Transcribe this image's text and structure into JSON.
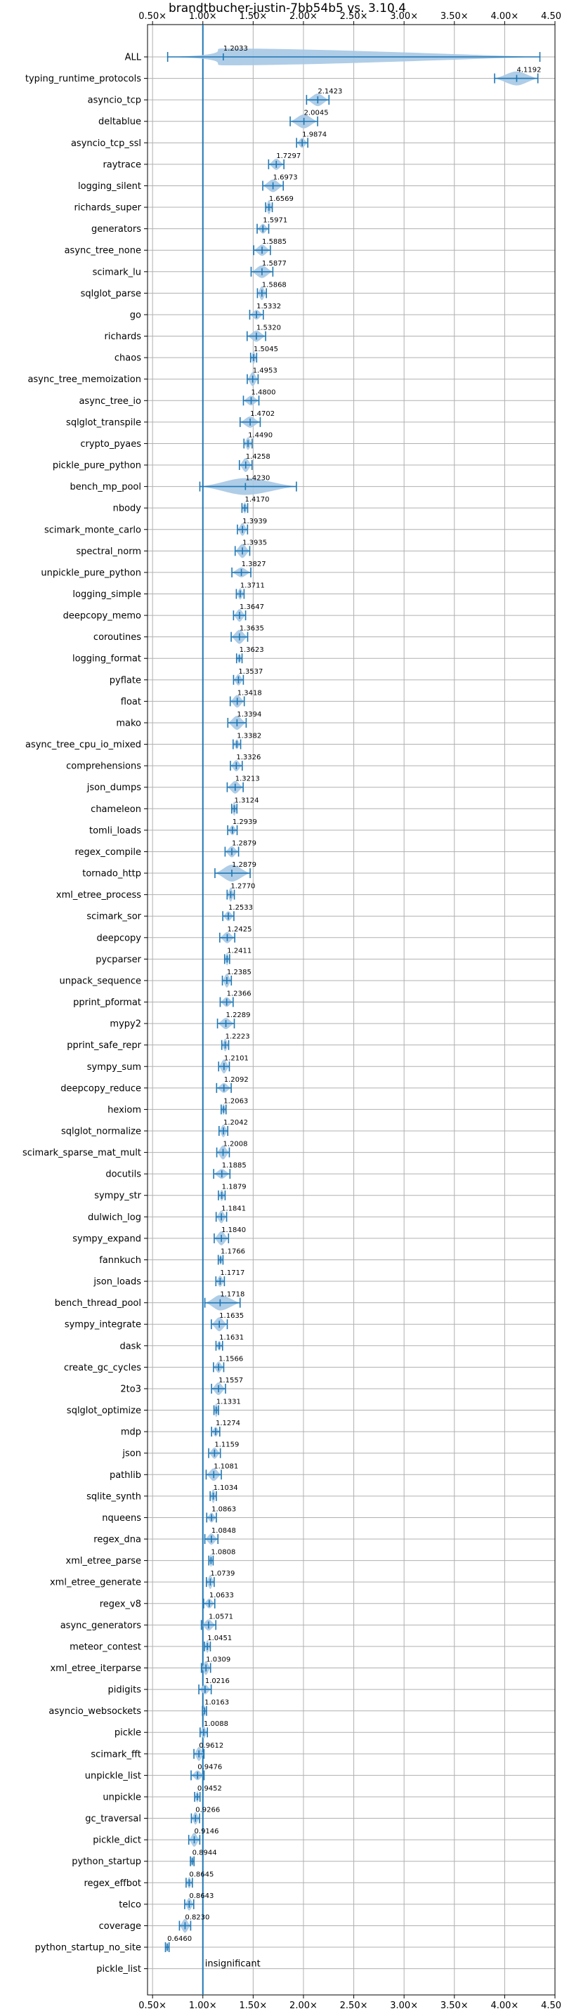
{
  "chart_data": {
    "type": "violin",
    "title": "brandtbucher-justin-7bb54b5 vs. 3.10.4",
    "xlabel": "",
    "ylabel": "",
    "xlim": [
      0.45,
      4.5
    ],
    "xticks": [
      0.5,
      1.0,
      1.5,
      2.0,
      2.5,
      3.0,
      3.5,
      4.0,
      4.5
    ],
    "xtick_labels": [
      "0.50×",
      "1.00×",
      "1.50×",
      "2.00×",
      "2.50×",
      "3.00×",
      "3.50×",
      "4.00×",
      "4.50×"
    ],
    "reference_line": 1.0,
    "grid": true,
    "colors": {
      "violin": "#a6c8e4",
      "line": "#1f77b4",
      "grid": "#b0b0b0"
    },
    "benchmarks": [
      {
        "name": "ALL",
        "value": 1.2033,
        "label": "1.2033"
      },
      {
        "name": "typing_runtime_protocols",
        "value": 4.1192,
        "label": "4.1192"
      },
      {
        "name": "asyncio_tcp",
        "value": 2.1423,
        "label": "2.1423"
      },
      {
        "name": "deltablue",
        "value": 2.0045,
        "label": "2.0045"
      },
      {
        "name": "asyncio_tcp_ssl",
        "value": 1.9874,
        "label": "1.9874"
      },
      {
        "name": "raytrace",
        "value": 1.7297,
        "label": "1.7297"
      },
      {
        "name": "logging_silent",
        "value": 1.6973,
        "label": "1.6973"
      },
      {
        "name": "richards_super",
        "value": 1.6569,
        "label": "1.6569"
      },
      {
        "name": "generators",
        "value": 1.5971,
        "label": "1.5971"
      },
      {
        "name": "async_tree_none",
        "value": 1.5885,
        "label": "1.5885"
      },
      {
        "name": "scimark_lu",
        "value": 1.5877,
        "label": "1.5877"
      },
      {
        "name": "sqlglot_parse",
        "value": 1.5868,
        "label": "1.5868"
      },
      {
        "name": "go",
        "value": 1.5332,
        "label": "1.5332"
      },
      {
        "name": "richards",
        "value": 1.532,
        "label": "1.5320"
      },
      {
        "name": "chaos",
        "value": 1.5045,
        "label": "1.5045"
      },
      {
        "name": "async_tree_memoization",
        "value": 1.4953,
        "label": "1.4953"
      },
      {
        "name": "async_tree_io",
        "value": 1.48,
        "label": "1.4800"
      },
      {
        "name": "sqlglot_transpile",
        "value": 1.4702,
        "label": "1.4702"
      },
      {
        "name": "crypto_pyaes",
        "value": 1.449,
        "label": "1.4490"
      },
      {
        "name": "pickle_pure_python",
        "value": 1.4258,
        "label": "1.4258"
      },
      {
        "name": "bench_mp_pool",
        "value": 1.423,
        "label": "1.4230"
      },
      {
        "name": "nbody",
        "value": 1.417,
        "label": "1.4170"
      },
      {
        "name": "scimark_monte_carlo",
        "value": 1.3939,
        "label": "1.3939"
      },
      {
        "name": "spectral_norm",
        "value": 1.3935,
        "label": "1.3935"
      },
      {
        "name": "unpickle_pure_python",
        "value": 1.3827,
        "label": "1.3827"
      },
      {
        "name": "logging_simple",
        "value": 1.3711,
        "label": "1.3711"
      },
      {
        "name": "deepcopy_memo",
        "value": 1.3647,
        "label": "1.3647"
      },
      {
        "name": "coroutines",
        "value": 1.3635,
        "label": "1.3635"
      },
      {
        "name": "logging_format",
        "value": 1.3623,
        "label": "1.3623"
      },
      {
        "name": "pyflate",
        "value": 1.3537,
        "label": "1.3537"
      },
      {
        "name": "float",
        "value": 1.3418,
        "label": "1.3418"
      },
      {
        "name": "mako",
        "value": 1.3394,
        "label": "1.3394"
      },
      {
        "name": "async_tree_cpu_io_mixed",
        "value": 1.3382,
        "label": "1.3382"
      },
      {
        "name": "comprehensions",
        "value": 1.3326,
        "label": "1.3326"
      },
      {
        "name": "json_dumps",
        "value": 1.3213,
        "label": "1.3213"
      },
      {
        "name": "chameleon",
        "value": 1.3124,
        "label": "1.3124"
      },
      {
        "name": "tomli_loads",
        "value": 1.2939,
        "label": "1.2939"
      },
      {
        "name": "regex_compile",
        "value": 1.2879,
        "label": "1.2879"
      },
      {
        "name": "tornado_http",
        "value": 1.2879,
        "label": "1.2879"
      },
      {
        "name": "xml_etree_process",
        "value": 1.277,
        "label": "1.2770"
      },
      {
        "name": "scimark_sor",
        "value": 1.2533,
        "label": "1.2533"
      },
      {
        "name": "deepcopy",
        "value": 1.2425,
        "label": "1.2425"
      },
      {
        "name": "pycparser",
        "value": 1.2411,
        "label": "1.2411"
      },
      {
        "name": "unpack_sequence",
        "value": 1.2385,
        "label": "1.2385"
      },
      {
        "name": "pprint_pformat",
        "value": 1.2366,
        "label": "1.2366"
      },
      {
        "name": "mypy2",
        "value": 1.2289,
        "label": "1.2289"
      },
      {
        "name": "pprint_safe_repr",
        "value": 1.2223,
        "label": "1.2223"
      },
      {
        "name": "sympy_sum",
        "value": 1.2101,
        "label": "1.2101"
      },
      {
        "name": "deepcopy_reduce",
        "value": 1.2092,
        "label": "1.2092"
      },
      {
        "name": "hexiom",
        "value": 1.2063,
        "label": "1.2063"
      },
      {
        "name": "sqlglot_normalize",
        "value": 1.2042,
        "label": "1.2042"
      },
      {
        "name": "scimark_sparse_mat_mult",
        "value": 1.2008,
        "label": "1.2008"
      },
      {
        "name": "docutils",
        "value": 1.1885,
        "label": "1.1885"
      },
      {
        "name": "sympy_str",
        "value": 1.1879,
        "label": "1.1879"
      },
      {
        "name": "dulwich_log",
        "value": 1.1841,
        "label": "1.1841"
      },
      {
        "name": "sympy_expand",
        "value": 1.184,
        "label": "1.1840"
      },
      {
        "name": "fannkuch",
        "value": 1.1766,
        "label": "1.1766"
      },
      {
        "name": "json_loads",
        "value": 1.1717,
        "label": "1.1717"
      },
      {
        "name": "bench_thread_pool",
        "value": 1.1718,
        "label": "1.1718"
      },
      {
        "name": "sympy_integrate",
        "value": 1.1635,
        "label": "1.1635"
      },
      {
        "name": "dask",
        "value": 1.1631,
        "label": "1.1631"
      },
      {
        "name": "create_gc_cycles",
        "value": 1.1566,
        "label": "1.1566"
      },
      {
        "name": "2to3",
        "value": 1.1557,
        "label": "1.1557"
      },
      {
        "name": "sqlglot_optimize",
        "value": 1.1331,
        "label": "1.1331"
      },
      {
        "name": "mdp",
        "value": 1.1274,
        "label": "1.1274"
      },
      {
        "name": "json",
        "value": 1.1159,
        "label": "1.1159"
      },
      {
        "name": "pathlib",
        "value": 1.1081,
        "label": "1.1081"
      },
      {
        "name": "sqlite_synth",
        "value": 1.1034,
        "label": "1.1034"
      },
      {
        "name": "nqueens",
        "value": 1.0863,
        "label": "1.0863"
      },
      {
        "name": "regex_dna",
        "value": 1.0848,
        "label": "1.0848"
      },
      {
        "name": "xml_etree_parse",
        "value": 1.0808,
        "label": "1.0808"
      },
      {
        "name": "xml_etree_generate",
        "value": 1.0739,
        "label": "1.0739"
      },
      {
        "name": "regex_v8",
        "value": 1.0633,
        "label": "1.0633"
      },
      {
        "name": "async_generators",
        "value": 1.0571,
        "label": "1.0571"
      },
      {
        "name": "meteor_contest",
        "value": 1.0451,
        "label": "1.0451"
      },
      {
        "name": "xml_etree_iterparse",
        "value": 1.0309,
        "label": "1.0309"
      },
      {
        "name": "pidigits",
        "value": 1.0216,
        "label": "1.0216"
      },
      {
        "name": "asyncio_websockets",
        "value": 1.0163,
        "label": "1.0163"
      },
      {
        "name": "pickle",
        "value": 1.0088,
        "label": "1.0088"
      },
      {
        "name": "scimark_fft",
        "value": 0.9612,
        "label": "0.9612"
      },
      {
        "name": "unpickle_list",
        "value": 0.9476,
        "label": "0.9476"
      },
      {
        "name": "unpickle",
        "value": 0.9452,
        "label": "0.9452"
      },
      {
        "name": "gc_traversal",
        "value": 0.9266,
        "label": "0.9266"
      },
      {
        "name": "pickle_dict",
        "value": 0.9146,
        "label": "0.9146"
      },
      {
        "name": "python_startup",
        "value": 0.8944,
        "label": "0.8944"
      },
      {
        "name": "regex_effbot",
        "value": 0.8645,
        "label": "0.8645"
      },
      {
        "name": "telco",
        "value": 0.8643,
        "label": "0.8643"
      },
      {
        "name": "coverage",
        "value": 0.823,
        "label": "0.8230"
      },
      {
        "name": "python_startup_no_site",
        "value": 0.646,
        "label": "0.6460"
      },
      {
        "name": "pickle_list",
        "value": null,
        "label": "insignificant"
      }
    ]
  }
}
